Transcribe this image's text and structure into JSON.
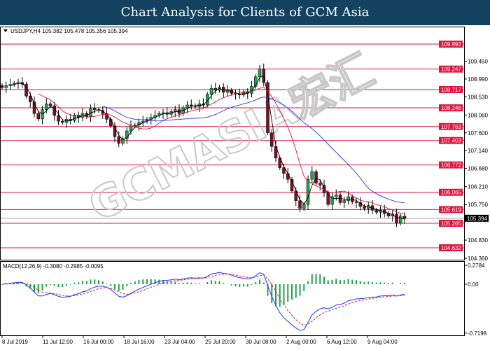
{
  "header": {
    "title": "Chart Analysis for Clients of GCM Asia"
  },
  "watermark": "GCMASIA宏汇",
  "chart_data": [
    {
      "type": "candlestick",
      "symbol_info": "USDJPY,H4  105.382 105.478 105.356 105.394",
      "ylim": [
        104.36,
        110.2
      ],
      "y_ticks": [
        "109.450",
        "108.990",
        "108.530",
        "108.060",
        "107.600",
        "107.140",
        "106.680",
        "106.210",
        "105.750",
        "104.830",
        "104.360"
      ],
      "levels": [
        "109.892",
        "109.247",
        "108.717",
        "108.246",
        "107.763",
        "107.403",
        "106.772",
        "106.065",
        "105.619",
        "105.265",
        "104.632"
      ],
      "current_price": "105.394",
      "x_ticks": [
        "8 Jul 2019",
        "11 Jul 12:00",
        "16 Jul 00:00",
        "18 Jul 16:00",
        "23 Jul 04:00",
        "25 Jul 20:00",
        "30 Jul 08:00",
        "2 Aug 00:00",
        "6 Aug 12:00",
        "9 Aug 04:00"
      ],
      "closes": [
        108.77,
        108.82,
        108.85,
        108.88,
        108.9,
        108.86,
        108.55,
        108.4,
        108.1,
        107.96,
        108.2,
        108.35,
        108.3,
        108.05,
        107.9,
        107.87,
        107.95,
        107.92,
        108.05,
        108.0,
        108.1,
        108.02,
        108.23,
        108.2,
        108.18,
        108.1,
        107.95,
        107.78,
        107.5,
        107.33,
        107.45,
        107.65,
        107.78,
        107.8,
        107.87,
        107.9,
        107.95,
        108.0,
        108.05,
        108.1,
        108.12,
        108.08,
        108.15,
        108.2,
        108.1,
        108.25,
        108.32,
        108.3,
        108.28,
        108.35,
        108.32,
        108.6,
        108.75,
        108.7,
        108.78,
        108.65,
        108.7,
        108.62,
        108.6,
        108.58,
        108.65,
        108.62,
        108.8,
        109.05,
        109.25,
        108.9,
        107.6,
        107.25,
        106.95,
        106.7,
        106.55,
        106.4,
        106.1,
        105.85,
        105.65,
        105.75,
        106.4,
        106.6,
        106.3,
        106.25,
        106.05,
        105.75,
        105.95,
        106.0,
        105.8,
        105.85,
        105.95,
        105.82,
        105.8,
        105.7,
        105.65,
        105.72,
        105.6,
        105.55,
        105.6,
        105.52,
        105.45,
        105.5,
        105.27,
        105.45,
        105.39
      ],
      "colors": {
        "up": "#1fa34a",
        "down": "#7a1022",
        "level": "#e0143c",
        "ma_fast": "#e0143c",
        "ma_slow": "#1a33ff",
        "ma_short": "#000000"
      }
    },
    {
      "type": "macd",
      "label": "MACD(12,26,9) -0.3080 -0.2985 -0.0095",
      "ylim": [
        -0.7198,
        0.2784
      ],
      "y_ticks": [
        "0.2784",
        "0.00",
        "-0.7198"
      ],
      "colors": {
        "histogram": "#1fa34a",
        "macd": "#1a33ff",
        "signal": "#e0143c"
      }
    }
  ]
}
